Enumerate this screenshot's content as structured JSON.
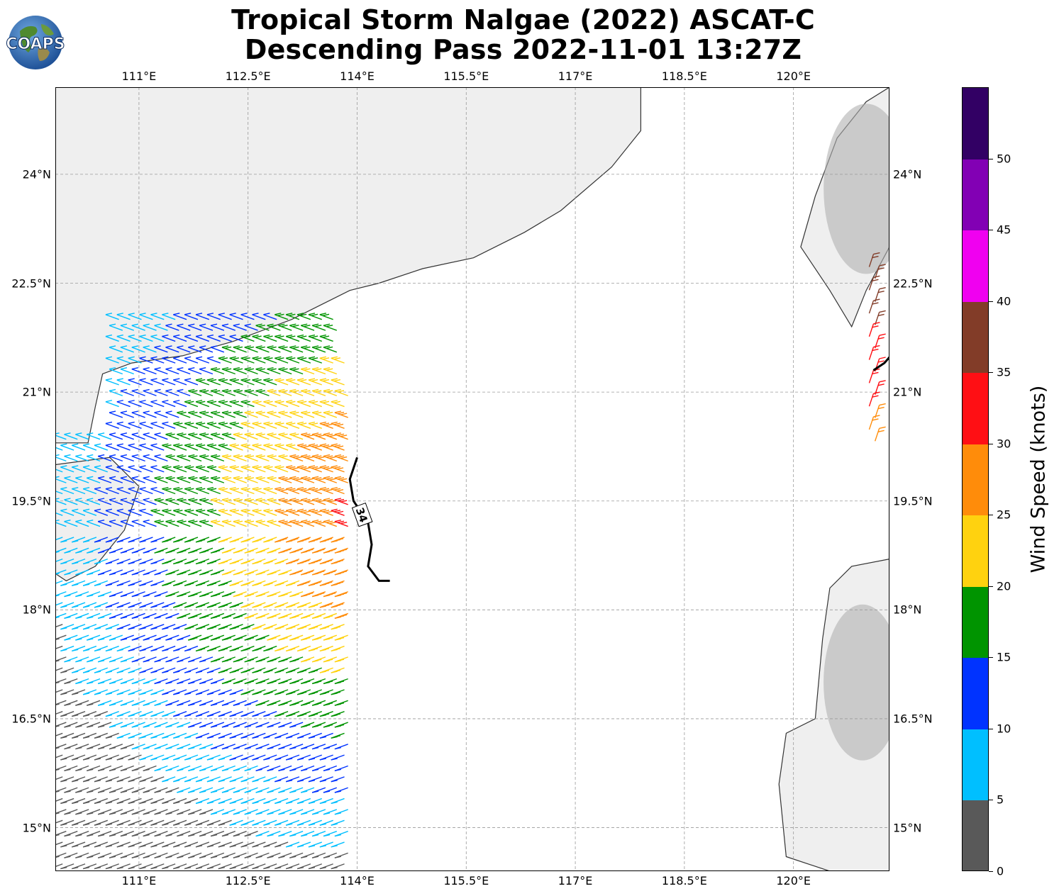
{
  "title": {
    "line1": "Tropical Storm Nalgae (2022) ASCAT-C",
    "line2": "Descending Pass 2022-11-01 13:27Z"
  },
  "logo": {
    "text": "COAPS",
    "icon": "globe-icon"
  },
  "axes": {
    "lon_ticks": [
      "111°E",
      "112.5°E",
      "114°E",
      "115.5°E",
      "117°E",
      "118.5°E",
      "120°E"
    ],
    "lat_ticks": [
      "24°N",
      "22.5°N",
      "21°N",
      "19.5°N",
      "18°N",
      "16.5°N",
      "15°N"
    ],
    "lon_range": [
      109.85,
      121.32
    ],
    "lat_range": [
      14.4,
      25.2
    ]
  },
  "map": {
    "contour_label": "34",
    "land_color": "#efefef",
    "coast_color": "#333333"
  },
  "colorbar": {
    "title": "Wind Speed (knots)",
    "tick_labels": [
      "0",
      "5",
      "10",
      "15",
      "20",
      "25",
      "30",
      "35",
      "40",
      "45",
      "50"
    ],
    "bins": [
      {
        "min": 0,
        "max": 5,
        "color": "#595959"
      },
      {
        "min": 5,
        "max": 10,
        "color": "#00bfff"
      },
      {
        "min": 10,
        "max": 15,
        "color": "#0033ff"
      },
      {
        "min": 15,
        "max": 20,
        "color": "#009400"
      },
      {
        "min": 20,
        "max": 25,
        "color": "#ffd20f"
      },
      {
        "min": 25,
        "max": 30,
        "color": "#ff8c0a"
      },
      {
        "min": 30,
        "max": 35,
        "color": "#ff0f14"
      },
      {
        "min": 35,
        "max": 40,
        "color": "#823c28"
      },
      {
        "min": 40,
        "max": 45,
        "color": "#f000f0"
      },
      {
        "min": 45,
        "max": 50,
        "color": "#8200b4"
      },
      {
        "min": 50,
        "max": 55,
        "color": "#320064"
      }
    ]
  }
}
